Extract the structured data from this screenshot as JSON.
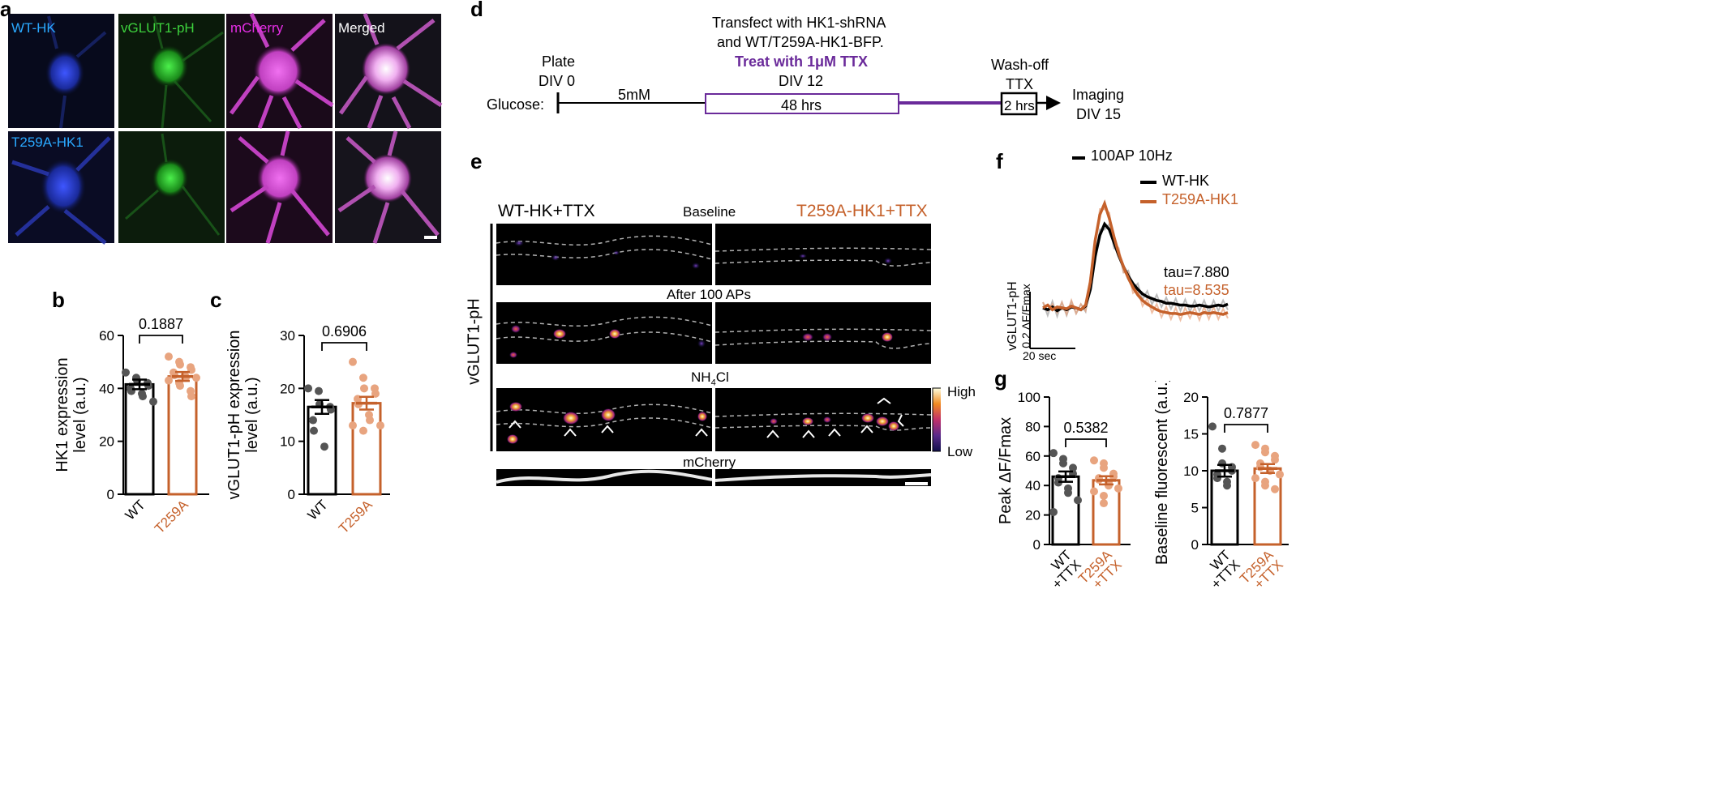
{
  "colors": {
    "wt": "#000000",
    "t259a": "#c5612b",
    "t259a_light": "#e8a47f",
    "wt_dot": "#555555",
    "cyan": "#2aa9ff",
    "green": "#3dd23d",
    "magenta": "#e62ee6",
    "purple": "#6a2a9a",
    "gray_dash": "#b0b0b0"
  },
  "panel_letters": {
    "a": "a",
    "b": "b",
    "c": "c",
    "d": "d",
    "e": "e",
    "f": "f",
    "g": "g"
  },
  "micro": {
    "row1": [
      "WT-HK",
      "vGLUT1-pH",
      "mCherry",
      "Merged"
    ],
    "row2": [
      "T259A-HK1",
      "",
      "",
      ""
    ]
  },
  "timeline": {
    "transfect_line1": "Transfect with HK1-shRNA",
    "transfect_line2": "and WT/T259A-HK1-BFP.",
    "treat": "Treat with 1μM TTX",
    "div12": "DIV 12",
    "plate": "Plate",
    "div0": "DIV 0",
    "glucose": "Glucose:",
    "glucose_conc": "5mM",
    "hrs48": "48 hrs",
    "washoff": "Wash-off",
    "ttx": "TTX",
    "hrs2": "2 hrs",
    "imaging": "Imaging",
    "div15": "DIV 15"
  },
  "panel_e": {
    "left_title": "WT-HK+TTX",
    "right_title": "T259A-HK1+TTX",
    "side_label": "vGLUT1-pH",
    "rows": [
      "Baseline",
      "After 100 APs",
      "NH4Cl",
      "mCherry"
    ],
    "nh4_main": "NH",
    "nh4_sub": "4",
    "nh4_tail": "Cl",
    "scale_high": "High",
    "scale_low": "Low"
  },
  "panel_f": {
    "stim": "100AP 10Hz",
    "legend_wt": "WT-HK",
    "legend_t259a": "T259A-HK1",
    "tau_wt": "tau=7.880",
    "tau_t259a": "tau=8.535",
    "ylabel1": "vGLUT1-pH",
    "ylabel2": "0.2 ΔF/Fmax",
    "xscale": "20 sec"
  },
  "chart_data": [
    {
      "id": "b",
      "type": "bar",
      "ylabel": "HK1 expression level (a.u.)",
      "ylabel_lines": [
        "HK1 expression",
        "level (a.u.)"
      ],
      "ylim": [
        0,
        60
      ],
      "yticks": [
        0,
        20,
        40,
        60
      ],
      "categories": [
        "WT",
        "T259A"
      ],
      "values": [
        41.5,
        44.5
      ],
      "sem": [
        1.8,
        1.7
      ],
      "pvalue": "0.1887",
      "points": [
        [
          46,
          44,
          43,
          42,
          41,
          40,
          39,
          38,
          37,
          35
        ],
        [
          52,
          50,
          49,
          48,
          47,
          46,
          45,
          45,
          44,
          44,
          43,
          42,
          41,
          39,
          37
        ]
      ]
    },
    {
      "id": "c",
      "type": "bar",
      "ylabel": "vGLUT1-pH expression level (a.u.)",
      "ylabel_lines": [
        "vGLUT1-pH expression",
        "level (a.u.)"
      ],
      "ylim": [
        0,
        30
      ],
      "yticks": [
        0,
        10,
        20,
        30
      ],
      "categories": [
        "WT",
        "T259A"
      ],
      "values": [
        16.5,
        17.2
      ],
      "sem": [
        1.3,
        1.2
      ],
      "pvalue": "0.6906",
      "points": [
        [
          20,
          19.5,
          17,
          16.5,
          16,
          14,
          12,
          9
        ],
        [
          25,
          22,
          20,
          20,
          19,
          18,
          17,
          15,
          14,
          13,
          13,
          12
        ]
      ]
    },
    {
      "id": "f",
      "type": "line",
      "xlabel": "",
      "ylabel": "",
      "series": [
        {
          "name": "WT-HK",
          "values": [
            0,
            -0.02,
            0.01,
            -0.03,
            0.0,
            -0.02,
            0.01,
            0.0,
            -0.02,
            0.02,
            0.2,
            0.55,
            0.78,
            0.9,
            0.84,
            0.7,
            0.56,
            0.44,
            0.34,
            0.26,
            0.2,
            0.15,
            0.12,
            0.1,
            0.08,
            0.07,
            0.05,
            0.05,
            0.04,
            0.03,
            0.03,
            0.02,
            0.02,
            0.03,
            0.02,
            0.01,
            0.02,
            0.03,
            0.02,
            0.04
          ]
        },
        {
          "name": "T259A-HK1",
          "values": [
            0,
            0.03,
            -0.02,
            0.01,
            0.0,
            -0.01,
            0.02,
            0.0,
            -0.02,
            0.03,
            0.28,
            0.72,
            1.0,
            1.12,
            0.96,
            0.76,
            0.58,
            0.44,
            0.32,
            0.22,
            0.14,
            0.08,
            0.04,
            0.01,
            -0.02,
            -0.04,
            -0.05,
            -0.06,
            -0.06,
            -0.07,
            -0.06,
            -0.05,
            -0.06,
            -0.07,
            -0.05,
            -0.06,
            -0.05,
            -0.06,
            -0.07,
            -0.05
          ]
        }
      ]
    },
    {
      "id": "g1",
      "type": "bar",
      "ylabel": "Peak ΔF/Fmax",
      "ylim": [
        0,
        100
      ],
      "yticks": [
        0,
        20,
        40,
        60,
        80,
        100
      ],
      "categories": [
        "WT +TTX",
        "T259A +TTX"
      ],
      "cat_lines": [
        [
          "WT",
          "+TTX"
        ],
        [
          "T259A",
          "+TTX"
        ]
      ],
      "values": [
        46,
        43.5
      ],
      "sem": [
        3.5,
        2.8
      ],
      "pvalue": "0.5382",
      "points": [
        [
          62,
          58,
          55,
          52,
          48,
          45,
          42,
          38,
          35,
          30,
          22
        ],
        [
          57,
          55,
          52,
          48,
          46,
          45,
          44,
          42,
          40,
          38,
          36,
          33,
          28
        ]
      ]
    },
    {
      "id": "g2",
      "type": "bar",
      "ylabel": "Baseline fluorescent (a.u.)",
      "ylim": [
        0,
        20
      ],
      "yticks": [
        0,
        5,
        10,
        15,
        20
      ],
      "categories": [
        "WT +TTX",
        "T259A +TTX"
      ],
      "cat_lines": [
        [
          "WT",
          "+TTX"
        ],
        [
          "T259A",
          "+TTX"
        ]
      ],
      "values": [
        10,
        10.3
      ],
      "sem": [
        0.8,
        0.6
      ],
      "pvalue": "0.7877",
      "points": [
        [
          16,
          13,
          11,
          10.5,
          10,
          9.5,
          9,
          8.5,
          8
        ],
        [
          13.5,
          13,
          12.5,
          12,
          11.5,
          11,
          10.5,
          10,
          10,
          9.5,
          9,
          8.5,
          8,
          7.5
        ]
      ]
    }
  ]
}
